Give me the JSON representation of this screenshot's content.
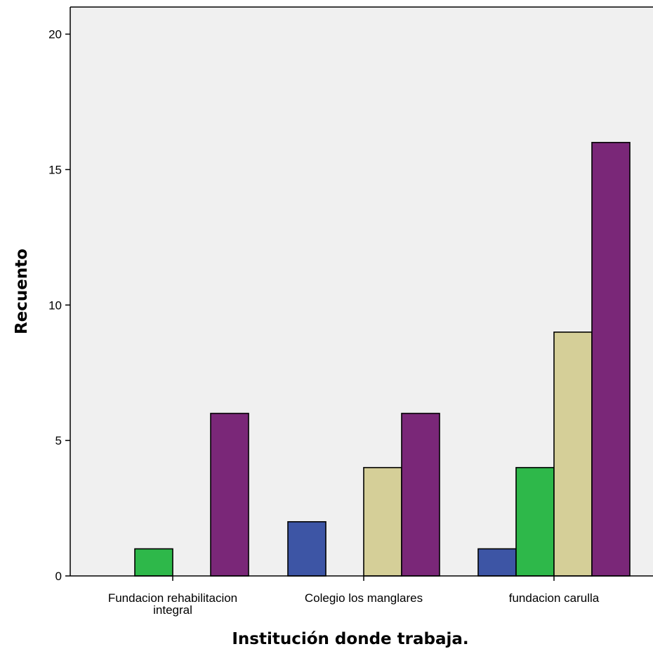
{
  "chart_data": {
    "type": "bar",
    "title": "",
    "xlabel": "Institución donde trabaja.",
    "ylabel": "Recuento",
    "ylim": [
      0,
      21
    ],
    "yticks": [
      0,
      5,
      10,
      15,
      20
    ],
    "grid": false,
    "legend": "none",
    "categories": [
      [
        "Fundacion rehabilitacion",
        "integral"
      ],
      [
        "Colegio los manglares"
      ],
      [
        "fundacion carulla"
      ]
    ],
    "series": [
      {
        "color": "#3d55a5",
        "values": [
          0,
          2,
          1
        ]
      },
      {
        "color": "#2eb84a",
        "values": [
          1,
          0,
          4
        ]
      },
      {
        "color": "#d5cf98",
        "values": [
          0,
          4,
          9
        ]
      },
      {
        "color": "#7a2778",
        "values": [
          6,
          6,
          16
        ]
      }
    ],
    "plot_background": "#f0f0f0"
  }
}
